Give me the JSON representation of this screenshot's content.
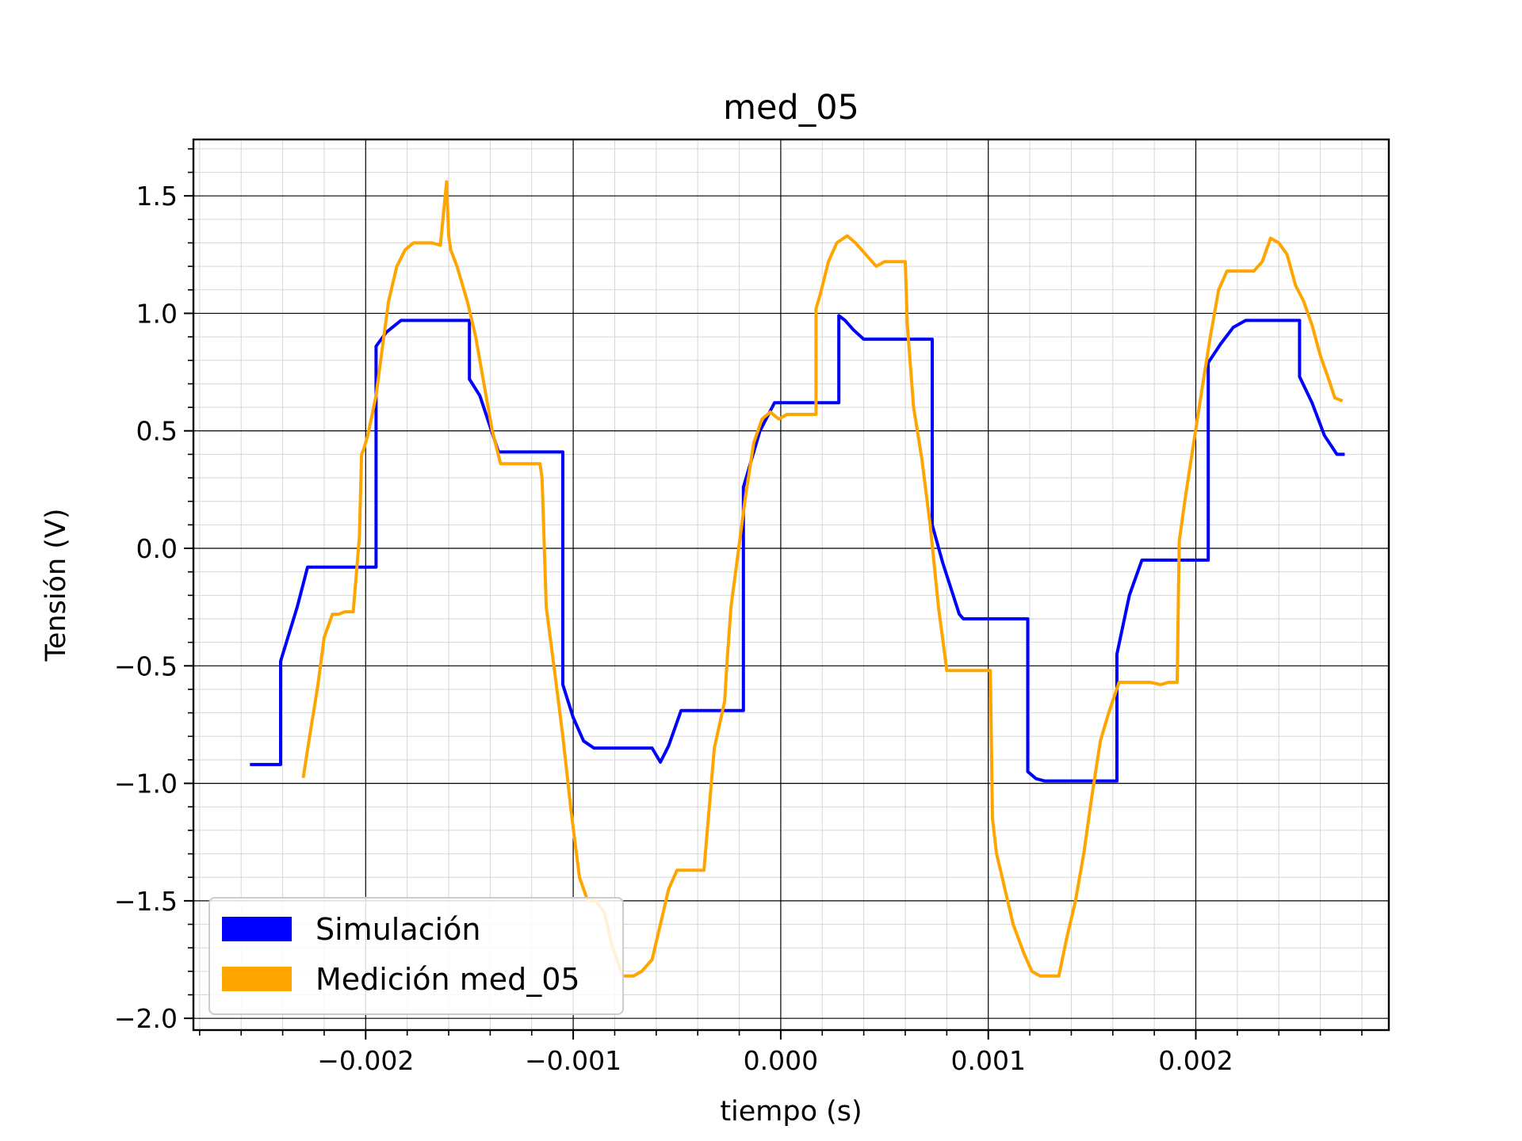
{
  "chart_data": {
    "type": "line",
    "title": "med_05",
    "xlabel": "tiempo (s)",
    "ylabel": "Tensión (V)",
    "xlim": [
      -0.00283,
      0.00293
    ],
    "ylim": [
      -2.05,
      1.74
    ],
    "xticks": [
      -0.002,
      -0.001,
      0.0,
      0.001,
      0.002
    ],
    "xtick_labels": [
      "−0.002",
      "−0.001",
      "0.000",
      "0.001",
      "0.002"
    ],
    "yticks": [
      -2.0,
      -1.5,
      -1.0,
      -0.5,
      0.0,
      0.5,
      1.0,
      1.5
    ],
    "ytick_labels": [
      "−2.0",
      "−1.5",
      "−1.0",
      "−0.5",
      "0.0",
      "0.5",
      "1.0",
      "1.5"
    ],
    "grid": "major and minor",
    "legend_position": "lower-left",
    "series": [
      {
        "name": "Simulación",
        "color": "#0000ff",
        "x": [
          -0.00255,
          -0.00241,
          -0.00241,
          -0.00233,
          -0.00228,
          -0.0022,
          -0.00196,
          -0.00195,
          -0.00195,
          -0.0019,
          -0.00183,
          -0.00175,
          -0.00151,
          -0.0015,
          -0.0015,
          -0.00145,
          -0.00136,
          -0.00131,
          -0.00106,
          -0.00105,
          -0.00105,
          -0.001,
          -0.00095,
          -0.0009,
          -0.00065,
          -0.00062,
          -0.00058,
          -0.00054,
          -0.00048,
          -0.00019,
          -0.00018,
          -0.00018,
          -0.0001,
          -3e-05,
          0.00028,
          0.00028,
          0.00031,
          0.00035,
          0.0004,
          0.00072,
          0.00073,
          0.00073,
          0.00078,
          0.00086,
          0.00088,
          0.00118,
          0.00119,
          0.00119,
          0.00123,
          0.00127,
          0.00132,
          0.00161,
          0.00162,
          0.00162,
          0.00168,
          0.00174,
          0.00205,
          0.00206,
          0.00206,
          0.00212,
          0.00218,
          0.00224,
          0.00249,
          0.0025,
          0.0025,
          0.00256,
          0.00262,
          0.00268,
          0.00271
        ],
        "y": [
          -0.92,
          -0.92,
          -0.48,
          -0.25,
          -0.08,
          -0.08,
          -0.08,
          -0.08,
          0.86,
          0.92,
          0.97,
          0.97,
          0.97,
          0.97,
          0.72,
          0.65,
          0.41,
          0.41,
          0.41,
          0.41,
          -0.58,
          -0.72,
          -0.82,
          -0.85,
          -0.85,
          -0.85,
          -0.91,
          -0.84,
          -0.69,
          -0.69,
          -0.69,
          0.26,
          0.5,
          0.62,
          0.62,
          0.99,
          0.97,
          0.93,
          0.89,
          0.89,
          0.89,
          0.1,
          -0.06,
          -0.28,
          -0.3,
          -0.3,
          -0.3,
          -0.95,
          -0.98,
          -0.99,
          -0.99,
          -0.99,
          -0.99,
          -0.45,
          -0.2,
          -0.05,
          -0.05,
          -0.05,
          0.79,
          0.87,
          0.94,
          0.97,
          0.97,
          0.97,
          0.73,
          0.62,
          0.48,
          0.4,
          0.4
        ]
      },
      {
        "name": "Medición med_05",
        "color": "#ffa500",
        "x": [
          -0.0023,
          -0.00227,
          -0.00223,
          -0.0022,
          -0.00216,
          -0.00213,
          -0.0021,
          -0.00208,
          -0.00206,
          -0.00203,
          -0.00202,
          -0.00201,
          -0.00199,
          -0.00195,
          -0.00192,
          -0.00189,
          -0.00185,
          -0.00181,
          -0.00177,
          -0.00173,
          -0.00168,
          -0.00164,
          -0.00161,
          -0.0016,
          -0.00159,
          -0.00156,
          -0.00151,
          -0.00147,
          -0.00143,
          -0.00139,
          -0.00135,
          -0.00132,
          -0.00128,
          -0.00124,
          -0.00119,
          -0.00116,
          -0.00115,
          -0.00113,
          -0.00109,
          -0.00105,
          -0.00101,
          -0.00097,
          -0.00093,
          -0.00089,
          -0.00085,
          -0.00081,
          -0.00076,
          -0.00071,
          -0.00067,
          -0.00062,
          -0.00058,
          -0.00054,
          -0.0005,
          -0.00046,
          -0.00041,
          -0.00037,
          -0.00032,
          -0.00027,
          -0.00026,
          -0.00024,
          -0.00021,
          -0.00017,
          -0.00013,
          -9e-05,
          -5e-05,
          -1e-05,
          3e-05,
          8e-05,
          0.00013,
          0.00017,
          0.00017,
          0.00019,
          0.00023,
          0.00027,
          0.00032,
          0.00036,
          0.00041,
          0.00046,
          0.0005,
          0.00055,
          0.0006,
          0.00061,
          0.00064,
          0.00068,
          0.00072,
          0.00076,
          0.0008,
          0.00084,
          0.00089,
          0.00093,
          0.00097,
          0.00101,
          0.00102,
          0.00104,
          0.00108,
          0.00112,
          0.00117,
          0.00121,
          0.00125,
          0.0013,
          0.00134,
          0.00138,
          0.00142,
          0.00146,
          0.0015,
          0.00154,
          0.00158,
          0.00163,
          0.00168,
          0.00173,
          0.00178,
          0.00183,
          0.00187,
          0.00191,
          0.00192,
          0.00195,
          0.00199,
          0.00203,
          0.00207,
          0.00211,
          0.00215,
          0.0022,
          0.00224,
          0.00228,
          0.00232,
          0.00236,
          0.0024,
          0.00244,
          0.00248,
          0.00252,
          0.00256,
          0.0026,
          0.00264,
          0.00267,
          0.0027
        ],
        "y": [
          -0.97,
          -0.8,
          -0.58,
          -0.38,
          -0.28,
          -0.28,
          -0.27,
          -0.27,
          -0.27,
          0.05,
          0.4,
          0.42,
          0.48,
          0.65,
          0.85,
          1.05,
          1.2,
          1.27,
          1.3,
          1.3,
          1.3,
          1.29,
          1.56,
          1.33,
          1.27,
          1.2,
          1.05,
          0.9,
          0.7,
          0.5,
          0.36,
          0.36,
          0.36,
          0.36,
          0.36,
          0.36,
          0.3,
          -0.25,
          -0.52,
          -0.8,
          -1.12,
          -1.4,
          -1.5,
          -1.5,
          -1.55,
          -1.7,
          -1.82,
          -1.82,
          -1.8,
          -1.75,
          -1.6,
          -1.45,
          -1.37,
          -1.37,
          -1.37,
          -1.37,
          -0.85,
          -0.65,
          -0.5,
          -0.25,
          -0.05,
          0.22,
          0.45,
          0.55,
          0.58,
          0.55,
          0.57,
          0.57,
          0.57,
          0.57,
          1.02,
          1.08,
          1.22,
          1.3,
          1.33,
          1.3,
          1.25,
          1.2,
          1.22,
          1.22,
          1.22,
          0.95,
          0.6,
          0.38,
          0.1,
          -0.25,
          -0.52,
          -0.52,
          -0.52,
          -0.52,
          -0.52,
          -0.52,
          -1.15,
          -1.3,
          -1.45,
          -1.6,
          -1.72,
          -1.8,
          -1.82,
          -1.82,
          -1.82,
          -1.65,
          -1.5,
          -1.3,
          -1.05,
          -0.82,
          -0.7,
          -0.57,
          -0.57,
          -0.57,
          -0.57,
          -0.58,
          -0.57,
          -0.57,
          0.03,
          0.22,
          0.45,
          0.68,
          0.9,
          1.1,
          1.18,
          1.18,
          1.18,
          1.18,
          1.22,
          1.32,
          1.3,
          1.25,
          1.12,
          1.05,
          0.95,
          0.82,
          0.72,
          0.64,
          0.63
        ]
      }
    ]
  }
}
